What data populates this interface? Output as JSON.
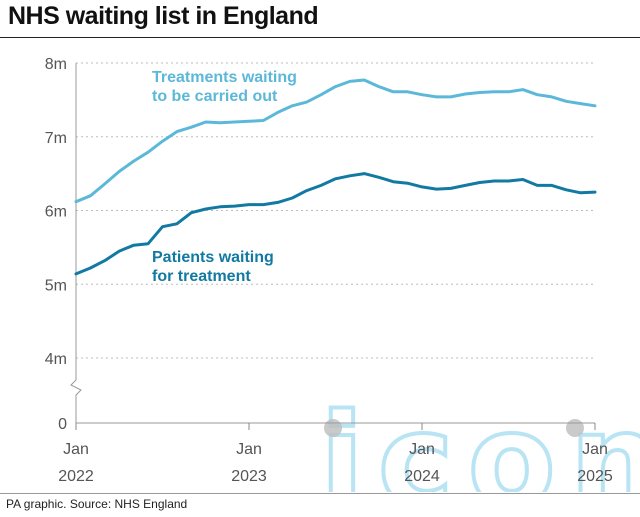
{
  "title": "NHS waiting list in England",
  "source": "PA graphic. Source: NHS England",
  "watermark": "iconic",
  "colors": {
    "treatments": "#5cb8d8",
    "patients": "#1279a3",
    "grid": "#bdbdbd",
    "axis": "#555555",
    "watermark": "#63c4e8"
  },
  "chart_data": {
    "type": "line",
    "title": "NHS waiting list in England",
    "xlabel": "",
    "ylabel": "",
    "ylim": [
      0,
      8
    ],
    "y_ticks": [
      {
        "value": 0,
        "label": "0"
      },
      {
        "value": 4,
        "label": "4m"
      },
      {
        "value": 5,
        "label": "5m"
      },
      {
        "value": 6,
        "label": "6m"
      },
      {
        "value": 7,
        "label": "7m"
      },
      {
        "value": 8,
        "label": "8m"
      }
    ],
    "axis_break": "between 0 and 4m",
    "grid": "horizontal, dotted",
    "x_ticks": [
      {
        "month": 0,
        "line1": "Jan",
        "line2": "2022"
      },
      {
        "month": 12,
        "line1": "Jan",
        "line2": "2023"
      },
      {
        "month": 24,
        "line1": "Jan",
        "line2": "2024"
      },
      {
        "month": 36,
        "line1": "Jan",
        "line2": "2025"
      }
    ],
    "x_range_months": [
      0,
      36
    ],
    "series": [
      {
        "name": "Treatments waiting to be carried out",
        "label_lines": [
          "Treatments waiting",
          "to be carried out"
        ],
        "color": "#5cb8d8",
        "values": [
          6.12,
          6.2,
          6.36,
          6.53,
          6.67,
          6.79,
          6.94,
          7.07,
          7.13,
          7.2,
          7.19,
          7.2,
          7.21,
          7.22,
          7.33,
          7.42,
          7.47,
          7.57,
          7.68,
          7.75,
          7.77,
          7.68,
          7.61,
          7.61,
          7.57,
          7.54,
          7.54,
          7.58,
          7.6,
          7.61,
          7.61,
          7.64,
          7.57,
          7.54,
          7.48,
          7.45,
          7.42
        ]
      },
      {
        "name": "Patients waiting for treatment",
        "label_lines": [
          "Patients waiting",
          "for treatment"
        ],
        "color": "#1279a3",
        "values": [
          5.14,
          5.22,
          5.32,
          5.45,
          5.53,
          5.55,
          5.78,
          5.82,
          5.97,
          6.02,
          6.05,
          6.06,
          6.08,
          6.08,
          6.11,
          6.17,
          6.27,
          6.34,
          6.43,
          6.47,
          6.5,
          6.45,
          6.39,
          6.37,
          6.32,
          6.29,
          6.3,
          6.34,
          6.38,
          6.4,
          6.4,
          6.42,
          6.34,
          6.34,
          6.28,
          6.24,
          6.25
        ]
      }
    ]
  }
}
